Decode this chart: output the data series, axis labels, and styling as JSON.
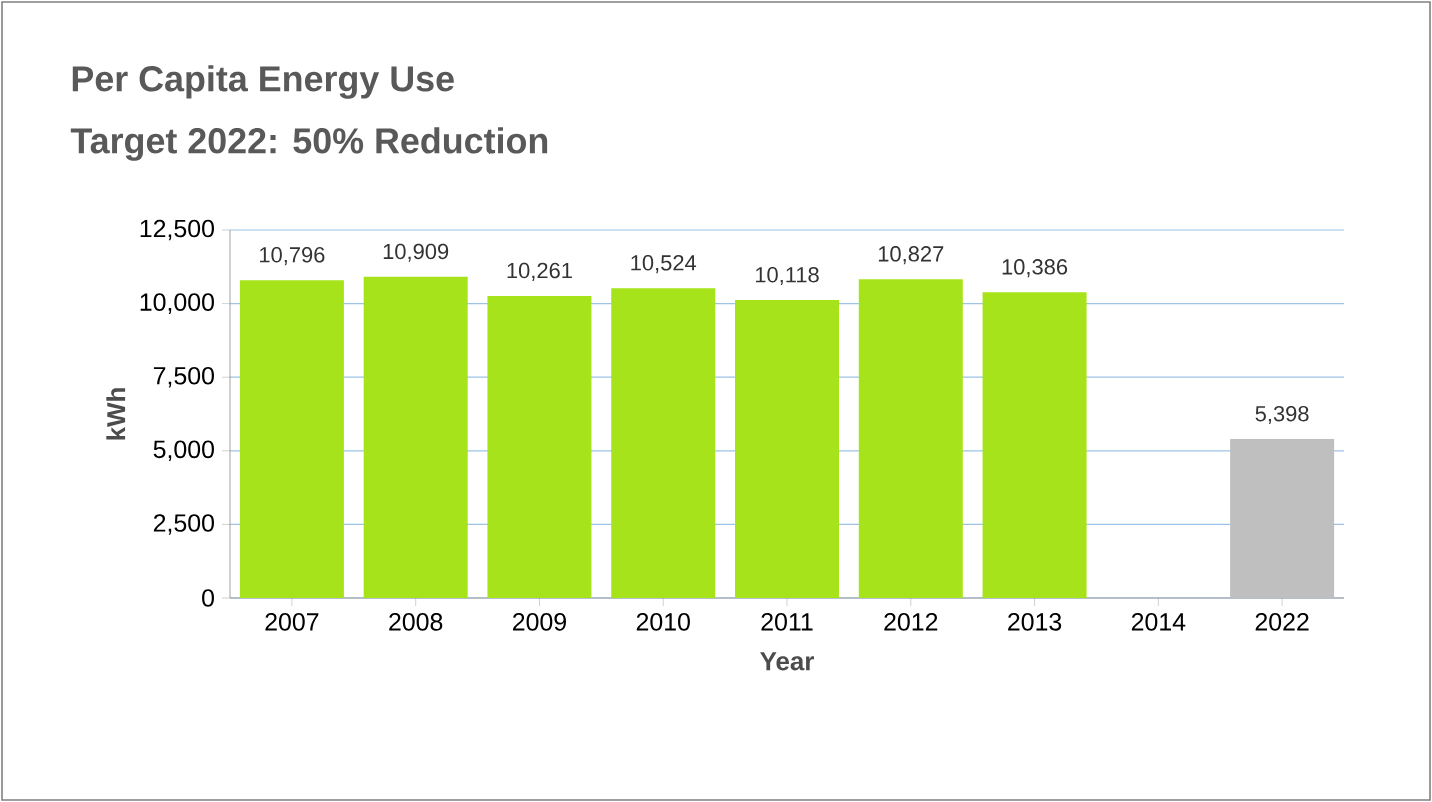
{
  "chart_data": {
    "type": "bar",
    "title": "Per Capita Energy Use",
    "subtitle": "Target 2022: 50% Reduction",
    "xlabel": "Year",
    "ylabel": "kWh",
    "categories": [
      "2007",
      "2008",
      "2009",
      "2010",
      "2011",
      "2012",
      "2013",
      "2014",
      "2022"
    ],
    "values": [
      10796,
      10909,
      10261,
      10524,
      10118,
      10827,
      10386,
      null,
      5398
    ],
    "colors": [
      "#a6e31a",
      "#a6e31a",
      "#a6e31a",
      "#a6e31a",
      "#a6e31a",
      "#a6e31a",
      "#a6e31a",
      "#a6e31a",
      "#bfbfbf"
    ],
    "value_labels": [
      "10,796",
      "10,909",
      "10,261",
      "10,524",
      "10,118",
      "10,827",
      "10,386",
      null,
      "5,398"
    ],
    "ylim": [
      0,
      12500
    ],
    "yticks": [
      {
        "value": 0,
        "label": "0"
      },
      {
        "value": 2500,
        "label": "2,500"
      },
      {
        "value": 5000,
        "label": "5,000"
      },
      {
        "value": 7500,
        "label": "7,500"
      },
      {
        "value": 10000,
        "label": "10,000"
      },
      {
        "value": 12500,
        "label": "12,500"
      }
    ],
    "grid": "y"
  }
}
